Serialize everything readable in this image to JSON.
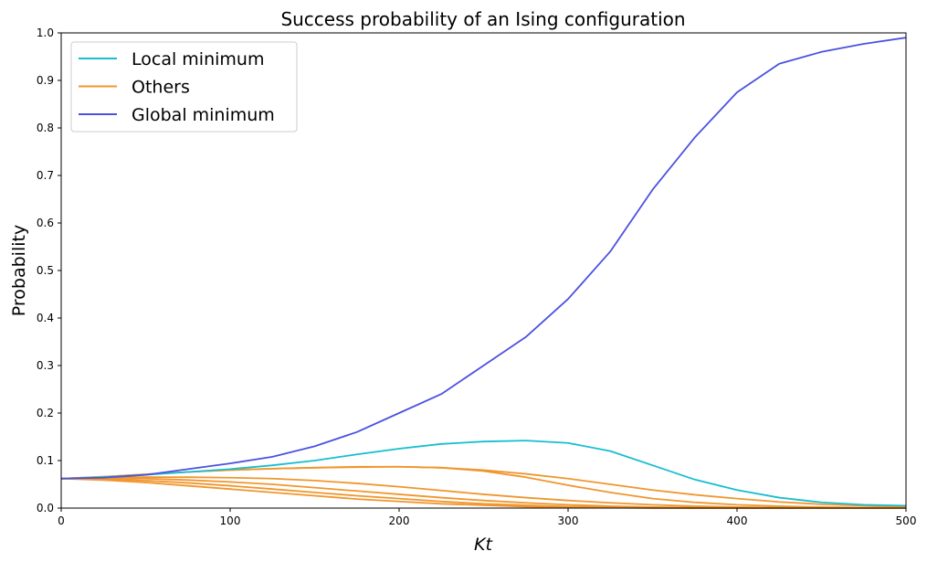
{
  "chart_data": {
    "type": "line",
    "title": "Success probability of an Ising configuration",
    "xlabel": "Kt",
    "ylabel": "Probability",
    "xlim": [
      0,
      500
    ],
    "ylim": [
      0,
      1.0
    ],
    "xticks": [
      0,
      100,
      200,
      300,
      400,
      500
    ],
    "yticks": [
      0.0,
      0.1,
      0.2,
      0.3,
      0.4,
      0.5,
      0.6,
      0.7,
      0.8,
      0.9,
      1.0
    ],
    "ytick_labels": [
      "0.0",
      "0.1",
      "0.2",
      "0.3",
      "0.4",
      "0.5",
      "0.6",
      "0.7",
      "0.8",
      "0.9",
      "1.0"
    ],
    "grid": false,
    "legend_position": "top-left",
    "legend": [
      {
        "label": "Local minimum",
        "color": "#17becf"
      },
      {
        "label": "Others",
        "color": "#f0962d"
      },
      {
        "label": "Global minimum",
        "color": "#4b52e0"
      }
    ],
    "series": [
      {
        "name": "Global minimum",
        "color": "#4b52e0",
        "x": [
          0,
          25,
          50,
          75,
          100,
          125,
          150,
          175,
          200,
          225,
          250,
          275,
          300,
          325,
          350,
          375,
          400,
          425,
          450,
          475,
          500
        ],
        "y": [
          0.062,
          0.064,
          0.07,
          0.082,
          0.094,
          0.108,
          0.13,
          0.16,
          0.2,
          0.24,
          0.3,
          0.36,
          0.44,
          0.54,
          0.67,
          0.78,
          0.875,
          0.935,
          0.96,
          0.977,
          0.99
        ]
      },
      {
        "name": "Local minimum",
        "color": "#17becf",
        "x": [
          0,
          25,
          50,
          75,
          100,
          125,
          150,
          175,
          200,
          225,
          250,
          275,
          300,
          325,
          350,
          375,
          400,
          425,
          450,
          475,
          500
        ],
        "y": [
          0.062,
          0.065,
          0.07,
          0.076,
          0.082,
          0.09,
          0.1,
          0.113,
          0.125,
          0.135,
          0.14,
          0.142,
          0.137,
          0.12,
          0.09,
          0.06,
          0.038,
          0.022,
          0.012,
          0.007,
          0.005
        ]
      },
      {
        "name": "Others",
        "color": "#f0962d",
        "x": [
          0,
          25,
          50,
          75,
          100,
          125,
          150,
          175,
          200,
          225,
          250,
          275,
          300,
          325,
          350,
          375,
          400,
          425,
          450,
          475,
          500
        ],
        "y": [
          0.062,
          0.066,
          0.071,
          0.076,
          0.08,
          0.083,
          0.085,
          0.086,
          0.087,
          0.085,
          0.08,
          0.072,
          0.062,
          0.05,
          0.038,
          0.028,
          0.02,
          0.013,
          0.008,
          0.005,
          0.003
        ]
      },
      {
        "name": "Others",
        "color": "#f0962d",
        "x": [
          0,
          25,
          50,
          75,
          100,
          125,
          150,
          175,
          200,
          225,
          250,
          275,
          300,
          325,
          350,
          375,
          400,
          425,
          450,
          475,
          500
        ],
        "y": [
          0.062,
          0.066,
          0.071,
          0.076,
          0.08,
          0.083,
          0.085,
          0.087,
          0.087,
          0.085,
          0.078,
          0.065,
          0.048,
          0.033,
          0.02,
          0.012,
          0.007,
          0.004,
          0.002,
          0.001,
          0.001
        ]
      },
      {
        "name": "Others",
        "color": "#f0962d",
        "x": [
          0,
          25,
          50,
          75,
          100,
          125,
          150,
          175,
          200,
          225,
          250,
          275,
          300,
          325,
          350,
          375,
          400,
          425,
          450,
          475,
          500
        ],
        "y": [
          0.062,
          0.064,
          0.065,
          0.065,
          0.064,
          0.062,
          0.058,
          0.052,
          0.045,
          0.037,
          0.029,
          0.022,
          0.016,
          0.011,
          0.007,
          0.004,
          0.002,
          0.001,
          0.001,
          0.0,
          0.0
        ]
      },
      {
        "name": "Others",
        "color": "#f0962d",
        "x": [
          0,
          25,
          50,
          75,
          100,
          125,
          150,
          175,
          200,
          225,
          250,
          275,
          300,
          325,
          350,
          375,
          400,
          425,
          450,
          475,
          500
        ],
        "y": [
          0.062,
          0.063,
          0.062,
          0.059,
          0.055,
          0.05,
          0.043,
          0.036,
          0.029,
          0.022,
          0.016,
          0.011,
          0.007,
          0.004,
          0.002,
          0.001,
          0.001,
          0.0,
          0.0,
          0.0,
          0.0
        ]
      },
      {
        "name": "Others",
        "color": "#f0962d",
        "x": [
          0,
          25,
          50,
          75,
          100,
          125,
          150,
          175,
          200,
          225,
          250,
          275,
          300,
          325,
          350,
          375,
          400,
          425,
          450,
          475,
          500
        ],
        "y": [
          0.062,
          0.061,
          0.058,
          0.053,
          0.047,
          0.04,
          0.033,
          0.026,
          0.02,
          0.014,
          0.009,
          0.006,
          0.003,
          0.002,
          0.001,
          0.0,
          0.0,
          0.0,
          0.0,
          0.0,
          0.0
        ]
      },
      {
        "name": "Others",
        "color": "#f0962d",
        "x": [
          0,
          25,
          50,
          75,
          100,
          125,
          150,
          175,
          200,
          225,
          250,
          275,
          300,
          325,
          350,
          375,
          400,
          425,
          450,
          475,
          500
        ],
        "y": [
          0.062,
          0.059,
          0.054,
          0.047,
          0.04,
          0.033,
          0.026,
          0.019,
          0.014,
          0.009,
          0.006,
          0.003,
          0.002,
          0.001,
          0.0,
          0.0,
          0.0,
          0.0,
          0.0,
          0.0,
          0.0
        ]
      }
    ]
  }
}
